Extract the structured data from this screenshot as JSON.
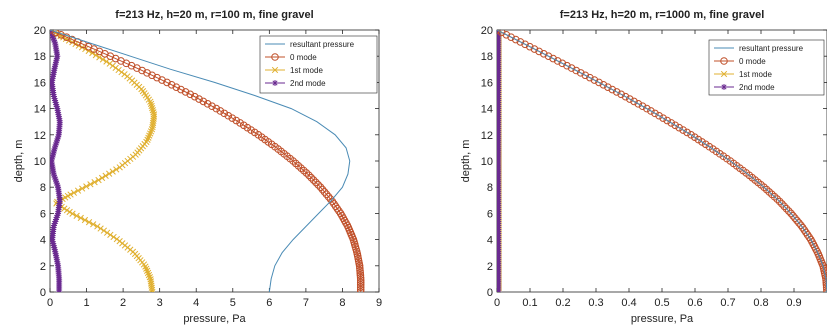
{
  "chart_data": [
    {
      "type": "line",
      "title": "f=213 Hz, h=20 m, r=100 m, fine gravel",
      "xlabel": "pressure, Pa",
      "ylabel": "depth, m",
      "xlim": [
        0,
        9
      ],
      "ylim": [
        0,
        20
      ],
      "xticks": [
        "0",
        "1",
        "2",
        "3",
        "4",
        "5",
        "6",
        "7",
        "8",
        "9"
      ],
      "yticks": [
        "0",
        "2",
        "4",
        "6",
        "8",
        "10",
        "12",
        "14",
        "16",
        "18",
        "20"
      ],
      "legend_position": "top-right",
      "series": [
        {
          "name": "resultant pressure",
          "color": "#4a8bb5",
          "marker": "none",
          "points": [
            [
              6.0,
              0
            ],
            [
              6.05,
              1
            ],
            [
              6.15,
              2
            ],
            [
              6.35,
              3
            ],
            [
              6.65,
              4
            ],
            [
              7.0,
              5
            ],
            [
              7.35,
              6
            ],
            [
              7.7,
              7
            ],
            [
              8.0,
              8
            ],
            [
              8.15,
              9
            ],
            [
              8.2,
              10
            ],
            [
              8.1,
              11
            ],
            [
              7.8,
              12
            ],
            [
              7.3,
              13
            ],
            [
              6.6,
              14
            ],
            [
              5.6,
              15
            ],
            [
              4.5,
              16
            ],
            [
              3.3,
              17
            ],
            [
              2.2,
              18
            ],
            [
              1.1,
              19
            ],
            [
              0,
              20
            ]
          ]
        },
        {
          "name": "0 mode",
          "color": "#c0502a",
          "marker": "circle",
          "points": [
            [
              8.5,
              0
            ],
            [
              8.5,
              1
            ],
            [
              8.47,
              2
            ],
            [
              8.4,
              3
            ],
            [
              8.3,
              4
            ],
            [
              8.15,
              5
            ],
            [
              7.95,
              6
            ],
            [
              7.7,
              7
            ],
            [
              7.4,
              8
            ],
            [
              7.05,
              9
            ],
            [
              6.65,
              10
            ],
            [
              6.2,
              11
            ],
            [
              5.7,
              12
            ],
            [
              5.15,
              13
            ],
            [
              4.55,
              14
            ],
            [
              3.9,
              15
            ],
            [
              3.2,
              16
            ],
            [
              2.45,
              17
            ],
            [
              1.65,
              18
            ],
            [
              0.83,
              19
            ],
            [
              0,
              20
            ]
          ]
        },
        {
          "name": "1st mode",
          "color": "#e0b030",
          "marker": "x",
          "points": [
            [
              2.8,
              0
            ],
            [
              2.75,
              1
            ],
            [
              2.6,
              2
            ],
            [
              2.3,
              3
            ],
            [
              1.85,
              4
            ],
            [
              1.3,
              5
            ],
            [
              0.6,
              6
            ],
            [
              0.15,
              6.8
            ],
            [
              0.6,
              7.5
            ],
            [
              1.3,
              8.5
            ],
            [
              1.9,
              9.5
            ],
            [
              2.35,
              10.5
            ],
            [
              2.65,
              11.5
            ],
            [
              2.8,
              12.5
            ],
            [
              2.85,
              13.5
            ],
            [
              2.75,
              14.5
            ],
            [
              2.5,
              15.5
            ],
            [
              2.1,
              16.5
            ],
            [
              1.6,
              17.5
            ],
            [
              1.0,
              18.5
            ],
            [
              0.45,
              19.3
            ],
            [
              0,
              20
            ]
          ]
        },
        {
          "name": "2nd mode",
          "color": "#6a2a90",
          "marker": "star",
          "points": [
            [
              0.25,
              0
            ],
            [
              0.25,
              1
            ],
            [
              0.22,
              2
            ],
            [
              0.15,
              3
            ],
            [
              0.06,
              4
            ],
            [
              0.1,
              5
            ],
            [
              0.22,
              6
            ],
            [
              0.27,
              7
            ],
            [
              0.22,
              8
            ],
            [
              0.1,
              9
            ],
            [
              0.04,
              10
            ],
            [
              0.13,
              11
            ],
            [
              0.24,
              12
            ],
            [
              0.27,
              13
            ],
            [
              0.2,
              14
            ],
            [
              0.1,
              15
            ],
            [
              0.05,
              16
            ],
            [
              0.12,
              17
            ],
            [
              0.2,
              18
            ],
            [
              0.14,
              19
            ],
            [
              0,
              20
            ]
          ]
        }
      ]
    },
    {
      "type": "line",
      "title": "f=213 Hz, h=20 m, r=1000 m, fine gravel",
      "xlabel": "pressure, Pa",
      "ylabel": "depth, m",
      "xlim": [
        0,
        1
      ],
      "ylim": [
        0,
        20
      ],
      "xticks": [
        "0",
        "0.1",
        "0.2",
        "0.3",
        "0.4",
        "0.5",
        "0.6",
        "0.7",
        "0.8",
        "0.9"
      ],
      "yticks": [
        "0",
        "2",
        "4",
        "6",
        "8",
        "10",
        "12",
        "14",
        "16",
        "18",
        "20"
      ],
      "legend_position": "top-right",
      "series": [
        {
          "name": "resultant pressure",
          "color": "#4a8bb5",
          "marker": "none",
          "points": [
            [
              1.0,
              0
            ],
            [
              0.997,
              1
            ],
            [
              0.988,
              2
            ],
            [
              0.972,
              3
            ],
            [
              0.951,
              4
            ],
            [
              0.924,
              5
            ],
            [
              0.891,
              6
            ],
            [
              0.853,
              7
            ],
            [
              0.809,
              8
            ],
            [
              0.76,
              9
            ],
            [
              0.707,
              10
            ],
            [
              0.649,
              11
            ],
            [
              0.588,
              12
            ],
            [
              0.522,
              13
            ],
            [
              0.454,
              14
            ],
            [
              0.383,
              15
            ],
            [
              0.309,
              16
            ],
            [
              0.233,
              17
            ],
            [
              0.156,
              18
            ],
            [
              0.078,
              19
            ],
            [
              0,
              20
            ]
          ]
        },
        {
          "name": "0 mode",
          "color": "#c0502a",
          "marker": "circle",
          "points": [
            [
              1.0,
              0
            ],
            [
              0.997,
              1
            ],
            [
              0.988,
              2
            ],
            [
              0.972,
              3
            ],
            [
              0.951,
              4
            ],
            [
              0.924,
              5
            ],
            [
              0.891,
              6
            ],
            [
              0.853,
              7
            ],
            [
              0.809,
              8
            ],
            [
              0.76,
              9
            ],
            [
              0.707,
              10
            ],
            [
              0.649,
              11
            ],
            [
              0.588,
              12
            ],
            [
              0.522,
              13
            ],
            [
              0.454,
              14
            ],
            [
              0.383,
              15
            ],
            [
              0.309,
              16
            ],
            [
              0.233,
              17
            ],
            [
              0.156,
              18
            ],
            [
              0.078,
              19
            ],
            [
              0,
              20
            ]
          ]
        },
        {
          "name": "1st mode",
          "color": "#e0b030",
          "marker": "x",
          "points": [
            [
              0.005,
              0
            ],
            [
              0.005,
              20
            ]
          ]
        },
        {
          "name": "2nd mode",
          "color": "#6a2a90",
          "marker": "star",
          "points": [
            [
              0.004,
              0
            ],
            [
              0.004,
              20
            ]
          ]
        }
      ]
    }
  ]
}
